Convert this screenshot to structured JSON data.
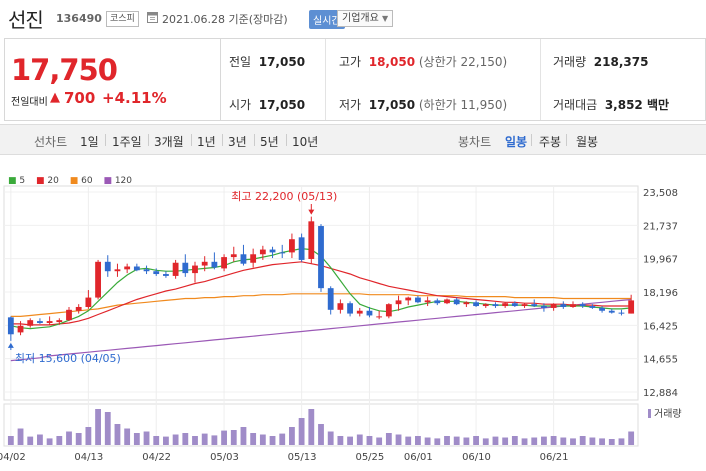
{
  "header": {
    "name": "선진",
    "code": "136490",
    "market": "코스피",
    "date": "2021.06.28 기준(장마감)",
    "realtime": "실시간",
    "company_info": "기업개요",
    "company_caret": "▼"
  },
  "price": {
    "current": "17,750",
    "change_label": "전일대비",
    "change_arrow": "▲",
    "change": "700",
    "change_pct": "+4.11%"
  },
  "stats": {
    "prev_label": "전일",
    "prev": "17,050",
    "high_label": "고가",
    "high": "18,050",
    "high_sub": "(상한가 22,150)",
    "volume_label": "거래량",
    "volume": "218,375",
    "open_label": "시가",
    "open": "17,050",
    "low_label": "저가",
    "low": "17,050",
    "low_sub": "(하한가 11,950)",
    "amount_label": "거래대금",
    "amount": "3,852 백만"
  },
  "periods": {
    "line_label": "선차트",
    "line": [
      "1일",
      "1주일",
      "3개월",
      "1년",
      "3년",
      "5년",
      "10년"
    ],
    "candle_label": "봉차트",
    "candle": [
      "일봉",
      "주봉",
      "월봉"
    ],
    "active": "일봉"
  },
  "colors": {
    "up": "#e0262b",
    "down": "#2f6bcf",
    "ma5": "#3aaa3a",
    "ma20": "#e0262b",
    "ma60": "#f08a1e",
    "ma120": "#9b59b6",
    "volume": "#a08cc8"
  },
  "chart_data": {
    "type": "candlestick",
    "ma_legend": [
      "5",
      "20",
      "60",
      "120"
    ],
    "yticks": [
      "23,508",
      "21,737",
      "19,967",
      "18,196",
      "16,425",
      "14,655",
      "12,884"
    ],
    "ylim": [
      12884,
      23508
    ],
    "xticks": [
      "04/02",
      "04/13",
      "04/22",
      "05/03",
      "05/13",
      "05/25",
      "06/01",
      "06/10",
      "06/21"
    ],
    "max_label": "최고 22,200 (05/13)",
    "min_label": "최저 15,600 (04/05)",
    "volume_label": "거래량",
    "candles": [
      [
        16850,
        16900,
        15600,
        15950
      ],
      [
        16050,
        16650,
        15900,
        16400
      ],
      [
        16400,
        16800,
        16300,
        16700
      ],
      [
        16650,
        16800,
        16500,
        16550
      ],
      [
        16550,
        16900,
        16450,
        16650
      ],
      [
        16600,
        16800,
        16450,
        16700
      ],
      [
        16700,
        17400,
        16650,
        17250
      ],
      [
        17200,
        17550,
        17050,
        17400
      ],
      [
        17400,
        18300,
        17300,
        17900
      ],
      [
        17900,
        19900,
        17800,
        19800
      ],
      [
        19800,
        20150,
        19000,
        19300
      ],
      [
        19300,
        19700,
        19000,
        19400
      ],
      [
        19400,
        19700,
        19200,
        19550
      ],
      [
        19550,
        19700,
        19300,
        19350
      ],
      [
        19400,
        19600,
        19150,
        19300
      ],
      [
        19300,
        19450,
        19050,
        19150
      ],
      [
        19150,
        19300,
        18950,
        19050
      ],
      [
        19050,
        19900,
        18900,
        19750
      ],
      [
        19750,
        20200,
        19000,
        19200
      ],
      [
        19200,
        19800,
        18700,
        19600
      ],
      [
        19600,
        20100,
        19300,
        19800
      ],
      [
        19800,
        20300,
        19400,
        19500
      ],
      [
        19450,
        20200,
        19300,
        20050
      ],
      [
        20050,
        20600,
        19800,
        20200
      ],
      [
        20200,
        20700,
        19600,
        19700
      ],
      [
        19750,
        20500,
        19500,
        20200
      ],
      [
        20200,
        20650,
        19900,
        20450
      ],
      [
        20450,
        20600,
        20000,
        20300
      ],
      [
        20300,
        20700,
        20000,
        20250
      ],
      [
        20300,
        21300,
        20000,
        21000
      ],
      [
        21100,
        21300,
        19800,
        19900
      ],
      [
        19950,
        22200,
        19700,
        21950
      ],
      [
        21700,
        21800,
        18200,
        18400
      ],
      [
        18400,
        18500,
        17000,
        17250
      ],
      [
        17250,
        17800,
        17050,
        17600
      ],
      [
        17600,
        17700,
        16900,
        17050
      ],
      [
        17050,
        17350,
        16900,
        17200
      ],
      [
        17200,
        17400,
        16850,
        16950
      ],
      [
        16850,
        17200,
        16750,
        16900
      ],
      [
        16900,
        17600,
        16800,
        17550
      ],
      [
        17550,
        18000,
        17200,
        17750
      ],
      [
        17750,
        17950,
        17500,
        17900
      ],
      [
        17900,
        18000,
        17600,
        17650
      ],
      [
        17650,
        17950,
        17450,
        17750
      ],
      [
        17750,
        17850,
        17500,
        17600
      ],
      [
        17600,
        17850,
        17550,
        17800
      ],
      [
        17800,
        17900,
        17500,
        17550
      ],
      [
        17550,
        17700,
        17400,
        17650
      ],
      [
        17650,
        17750,
        17400,
        17450
      ],
      [
        17450,
        17600,
        17350,
        17550
      ],
      [
        17550,
        17650,
        17350,
        17450
      ],
      [
        17450,
        17650,
        17350,
        17600
      ],
      [
        17600,
        17700,
        17400,
        17450
      ],
      [
        17450,
        17600,
        17350,
        17550
      ],
      [
        17550,
        17800,
        17400,
        17450
      ],
      [
        17450,
        17600,
        17150,
        17350
      ],
      [
        17350,
        17600,
        17200,
        17550
      ],
      [
        17550,
        17700,
        17300,
        17400
      ],
      [
        17400,
        17700,
        17350,
        17550
      ],
      [
        17550,
        17650,
        17350,
        17450
      ],
      [
        17450,
        17550,
        17300,
        17350
      ],
      [
        17350,
        17450,
        17100,
        17200
      ],
      [
        17200,
        17300,
        17050,
        17100
      ],
      [
        17100,
        17250,
        16950,
        17050
      ],
      [
        17050,
        18050,
        17050,
        17750
      ]
    ],
    "ma5": [
      16400,
      16300,
      16250,
      16300,
      16350,
      16500,
      16700,
      16900,
      17200,
      17700,
      18200,
      18700,
      19100,
      19400,
      19450,
      19350,
      19300,
      19300,
      19350,
      19400,
      19450,
      19500,
      19600,
      19800,
      19900,
      19950,
      20050,
      20150,
      20300,
      20400,
      20500,
      20450,
      20100,
      19500,
      18800,
      18100,
      17550,
      17350,
      17200,
      17150,
      17250,
      17400,
      17500,
      17600,
      17700,
      17700,
      17700,
      17650,
      17600,
      17550,
      17500,
      17500,
      17500,
      17500,
      17450,
      17450,
      17450,
      17450,
      17450,
      17450,
      17400,
      17350,
      17300,
      17300,
      17350
    ],
    "ma20": [
      16500,
      16500,
      16450,
      16450,
      16450,
      16500,
      16550,
      16650,
      16800,
      17000,
      17200,
      17400,
      17600,
      17800,
      17950,
      18100,
      18250,
      18350,
      18500,
      18650,
      18750,
      18900,
      19050,
      19200,
      19350,
      19450,
      19550,
      19650,
      19700,
      19750,
      19800,
      19700,
      19600,
      19450,
      19300,
      19150,
      18950,
      18800,
      18650,
      18500,
      18400,
      18300,
      18200,
      18100,
      18000,
      17950,
      17900,
      17850,
      17800,
      17750,
      17700,
      17650,
      17650,
      17600,
      17600,
      17550,
      17550,
      17550,
      17500,
      17500,
      17500,
      17450,
      17450,
      17450,
      17450
    ],
    "ma60": [
      16900,
      16900,
      16950,
      17000,
      17050,
      17100,
      17150,
      17200,
      17250,
      17300,
      17400,
      17500,
      17550,
      17600,
      17650,
      17700,
      17750,
      17800,
      17850,
      17850,
      17900,
      17900,
      17950,
      17950,
      18000,
      18000,
      18050,
      18050,
      18050,
      18100,
      18100,
      18100,
      18100,
      18100,
      18100,
      18100,
      18100,
      18050,
      18050,
      18050,
      18050,
      18050,
      18000,
      18000,
      18000,
      18000,
      18000,
      17950,
      17950,
      17950,
      17950,
      17950,
      17900,
      17900,
      17900,
      17900,
      17900,
      17850,
      17850,
      17850,
      17850,
      17850,
      17850,
      17850,
      17850
    ],
    "ma120": [
      14550,
      14600,
      14650,
      14700,
      14800,
      14850,
      14900,
      14950,
      15000,
      15050,
      15100,
      15150,
      15200,
      15250,
      15300,
      15350,
      15400,
      15450,
      15500,
      15550,
      15600,
      15650,
      15700,
      15750,
      15800,
      15850,
      15900,
      15950,
      16000,
      16050,
      16100,
      16150,
      16200,
      16250,
      16300,
      16350,
      16400,
      16450,
      16500,
      16550,
      16600,
      16650,
      16700,
      16750,
      16800,
      16850,
      16900,
      16950,
      17000,
      17050,
      17100,
      17150,
      17200,
      17250,
      17300,
      17350,
      17400,
      17450,
      17500,
      17550,
      17600,
      17650,
      17700,
      17750,
      17800
    ],
    "volumes": [
      30,
      55,
      28,
      35,
      22,
      30,
      45,
      40,
      60,
      120,
      110,
      70,
      55,
      40,
      45,
      30,
      28,
      35,
      40,
      30,
      38,
      32,
      48,
      50,
      60,
      40,
      35,
      30,
      38,
      60,
      90,
      120,
      70,
      45,
      30,
      28,
      35,
      30,
      25,
      40,
      35,
      28,
      30,
      25,
      22,
      30,
      28,
      25,
      30,
      22,
      28,
      25,
      30,
      22,
      25,
      28,
      30,
      25,
      22,
      30,
      25,
      22,
      20,
      22,
      45
    ]
  }
}
